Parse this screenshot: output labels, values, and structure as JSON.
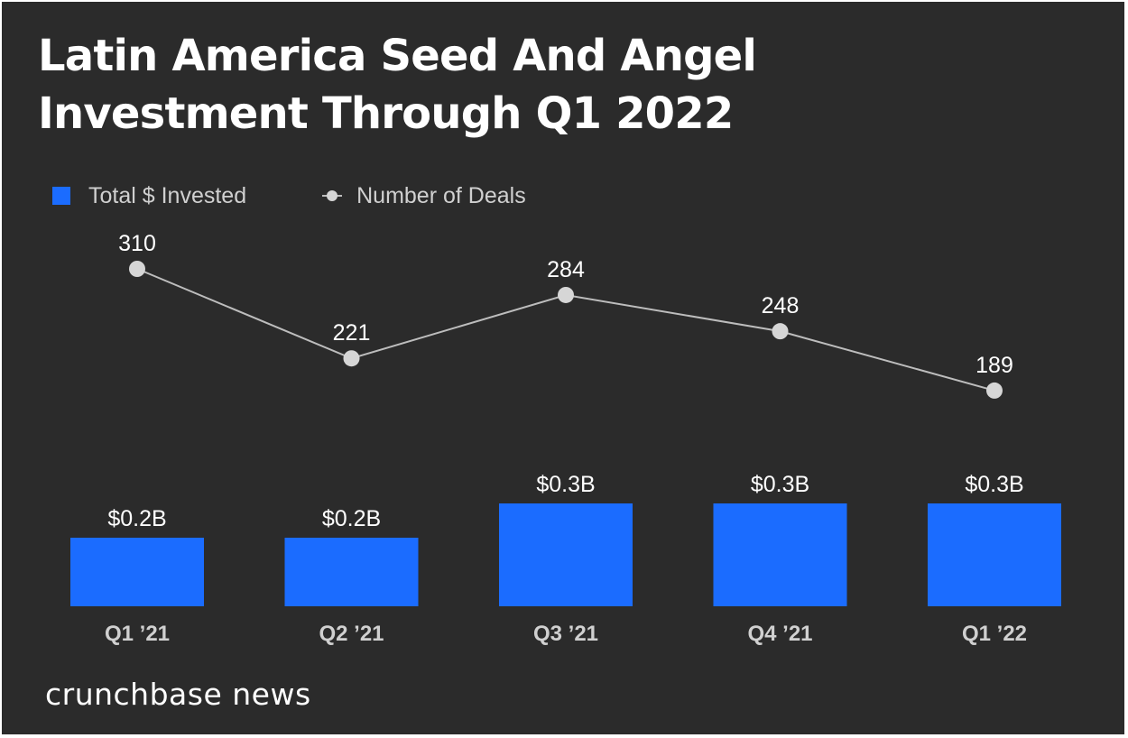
{
  "chart_data": {
    "type": "bar",
    "title": "Latin America Seed And Angel Investment Through Q1 2022",
    "categories": [
      "Q1 ’21",
      "Q2 ’21",
      "Q3 ’21",
      "Q4 ’21",
      "Q1 ’22"
    ],
    "series": [
      {
        "name": "Total $ Invested",
        "type": "bar",
        "values": [
          0.2,
          0.2,
          0.3,
          0.3,
          0.3
        ],
        "labels": [
          "$0.2B",
          "$0.2B",
          "$0.3B",
          "$0.3B",
          "$0.3B"
        ],
        "color": "#1b6cff"
      },
      {
        "name": "Number of Deals",
        "type": "line",
        "values": [
          310,
          221,
          284,
          248,
          189
        ],
        "labels": [
          "310",
          "221",
          "284",
          "248",
          "189"
        ],
        "color": "#d6d6d6"
      }
    ],
    "legend": "top-left",
    "grid": false
  },
  "colors": {
    "background": "#2b2b2b",
    "bar": "#1b6cff",
    "line": "#bdbdbd",
    "point": "#d6d6d6",
    "text": "#ffffff"
  },
  "footer": {
    "brand": "crunchbase news"
  }
}
